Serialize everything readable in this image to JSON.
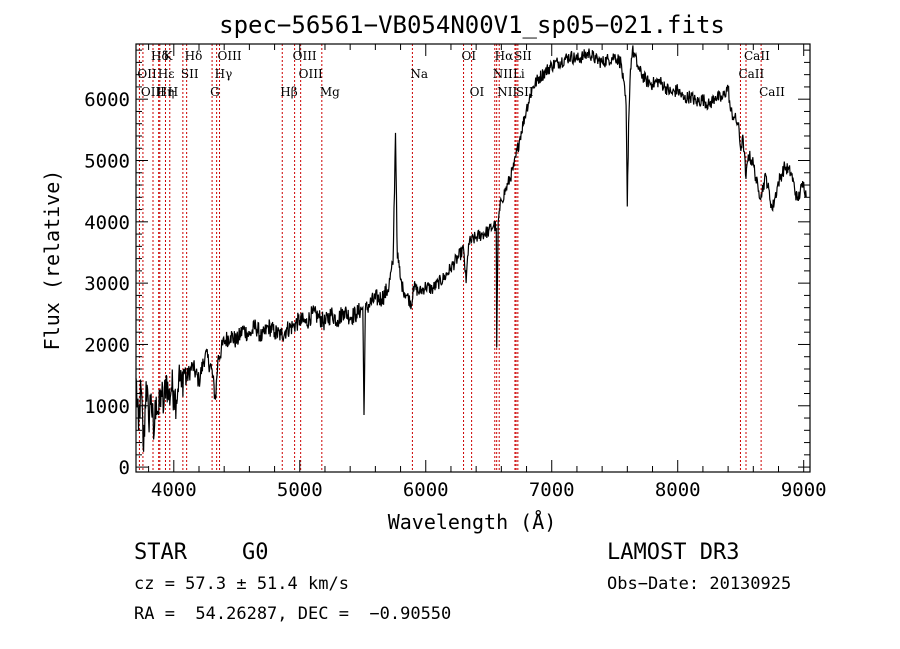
{
  "chart_data": {
    "type": "line",
    "title": "spec−56561−VB054N00V1_sp05−021.fits",
    "xlabel": "Wavelength (Å)",
    "ylabel": "Flux (relative)",
    "xlim": [
      3700,
      9050
    ],
    "ylim": [
      -80,
      6900
    ],
    "xticks": [
      4000,
      5000,
      6000,
      7000,
      8000,
      9000
    ],
    "xtick_labels": [
      "4000",
      "5000",
      "6000",
      "7000",
      "8000",
      "9000"
    ],
    "yticks": [
      0,
      1000,
      2000,
      3000,
      4000,
      5000,
      6000
    ],
    "ytick_labels": [
      "0",
      "1000",
      "2000",
      "3000",
      "4000",
      "5000",
      "6000"
    ],
    "series": [
      {
        "name": "spectrum",
        "x": [
          3700,
          3720,
          3740,
          3760,
          3780,
          3800,
          3820,
          3840,
          3860,
          3880,
          3900,
          3920,
          3940,
          3960,
          3980,
          4000,
          4020,
          4040,
          4060,
          4080,
          4100,
          4150,
          4200,
          4250,
          4300,
          4330,
          4350,
          4400,
          4450,
          4500,
          4550,
          4600,
          4650,
          4700,
          4750,
          4800,
          4850,
          4900,
          4950,
          5000,
          5050,
          5100,
          5150,
          5200,
          5250,
          5300,
          5350,
          5400,
          5450,
          5500,
          5510,
          5520,
          5550,
          5600,
          5650,
          5700,
          5740,
          5760,
          5775,
          5790,
          5800,
          5820,
          5850,
          5890,
          5900,
          5950,
          6000,
          6050,
          6100,
          6150,
          6200,
          6250,
          6300,
          6320,
          6340,
          6400,
          6450,
          6500,
          6540,
          6560,
          6563,
          6575,
          6600,
          6650,
          6700,
          6750,
          6800,
          6850,
          6900,
          6950,
          7000,
          7050,
          7100,
          7150,
          7200,
          7250,
          7300,
          7350,
          7400,
          7450,
          7500,
          7550,
          7590,
          7600,
          7610,
          7625,
          7640,
          7660,
          7680,
          7700,
          7750,
          7800,
          7850,
          7900,
          7950,
          8000,
          8050,
          8100,
          8150,
          8200,
          8250,
          8300,
          8350,
          8400,
          8420,
          8450,
          8480,
          8498,
          8520,
          8542,
          8560,
          8600,
          8640,
          8662,
          8700,
          8750,
          8800,
          8850,
          8900,
          8950,
          9000,
          9020
        ],
        "values": [
          1450,
          600,
          1300,
          250,
          1400,
          750,
          1200,
          450,
          1150,
          850,
          1250,
          950,
          1500,
          1100,
          1300,
          1250,
          1100,
          1500,
          1300,
          1600,
          1450,
          1650,
          1400,
          1850,
          1600,
          1100,
          1750,
          2050,
          2150,
          2050,
          2250,
          2150,
          2300,
          2100,
          2300,
          2200,
          2150,
          2250,
          2300,
          2400,
          2350,
          2500,
          2450,
          2350,
          2500,
          2400,
          2550,
          2450,
          2500,
          2600,
          850,
          2550,
          2650,
          2750,
          2750,
          2900,
          3300,
          5450,
          3400,
          3250,
          3050,
          2900,
          2800,
          2650,
          2950,
          2850,
          2950,
          2900,
          3000,
          3100,
          3250,
          3400,
          3550,
          3000,
          3650,
          3750,
          3800,
          3850,
          3950,
          3900,
          1950,
          4000,
          4350,
          4600,
          4900,
          5400,
          5850,
          6200,
          6350,
          6450,
          6550,
          6600,
          6650,
          6700,
          6650,
          6700,
          6750,
          6650,
          6600,
          6650,
          6700,
          6600,
          5900,
          4250,
          5600,
          6500,
          6800,
          6700,
          6550,
          6450,
          6300,
          6250,
          6300,
          6200,
          6100,
          6150,
          6000,
          6050,
          5950,
          6000,
          5900,
          6050,
          6000,
          6200,
          5800,
          5700,
          5600,
          5200,
          5350,
          4700,
          5100,
          4950,
          4500,
          4450,
          4750,
          4200,
          4650,
          4900,
          4800,
          4350,
          4650,
          4400
        ]
      }
    ],
    "annotations": [
      "Na"
    ],
    "spectral_lines": [
      {
        "label": "Hδ",
        "wavelength": 3835,
        "row": 1
      },
      {
        "label": "K",
        "wavelength": 3934,
        "row": 1
      },
      {
        "label": "Hδ",
        "wavelength": 4102,
        "row": 1
      },
      {
        "label": "OIII",
        "wavelength": 4363,
        "row": 1
      },
      {
        "label": "OIII",
        "wavelength": 4959,
        "row": 1
      },
      {
        "label": "OI",
        "wavelength": 6300,
        "row": 1
      },
      {
        "label": "Hα",
        "wavelength": 6563,
        "row": 1
      },
      {
        "label": "SII",
        "wavelength": 6717,
        "row": 1
      },
      {
        "label": "CaII",
        "wavelength": 8542,
        "row": 1
      },
      {
        "label": "OII",
        "wavelength": 3727,
        "row": 2
      },
      {
        "label": "Hε",
        "wavelength": 3889,
        "row": 2
      },
      {
        "label": "SII",
        "wavelength": 4072,
        "row": 2
      },
      {
        "label": "Hγ",
        "wavelength": 4340,
        "row": 2
      },
      {
        "label": "OIII",
        "wavelength": 5007,
        "row": 2
      },
      {
        "label": "NII",
        "wavelength": 6548,
        "row": 2
      },
      {
        "label": "Li",
        "wavelength": 6708,
        "row": 2
      },
      {
        "label": "CaII",
        "wavelength": 8498,
        "row": 2
      },
      {
        "label": "OIII",
        "wavelength": 3755,
        "row": 3
      },
      {
        "label": "Hη",
        "wavelength": 3880,
        "row": 3
      },
      {
        "label": "H",
        "wavelength": 3968,
        "row": 3
      },
      {
        "label": "G",
        "wavelength": 4304,
        "row": 3
      },
      {
        "label": "Hβ",
        "wavelength": 4861,
        "row": 3
      },
      {
        "label": "Mg",
        "wavelength": 5175,
        "row": 3
      },
      {
        "label": "Na",
        "wavelength": 5894,
        "row": 2
      },
      {
        "label": "OI",
        "wavelength": 6364,
        "row": 3
      },
      {
        "label": "NII",
        "wavelength": 6583,
        "row": 3
      },
      {
        "label": "SII",
        "wavelength": 6731,
        "row": 3
      },
      {
        "label": "CaII",
        "wavelength": 8662,
        "row": 3
      }
    ],
    "colors": {
      "spectrum": "#000000",
      "line_markers": "#cc0000",
      "axes": "#000000"
    }
  },
  "footer": {
    "object_class": "STAR",
    "subclass": "G0",
    "survey": "LAMOST DR3",
    "redshift_line": "cz = 57.3 ± 51.4 km/s",
    "obs_date": "Obs−Date: 20130925",
    "coords_line": "RA =  54.26287, DEC =  −0.90550"
  }
}
